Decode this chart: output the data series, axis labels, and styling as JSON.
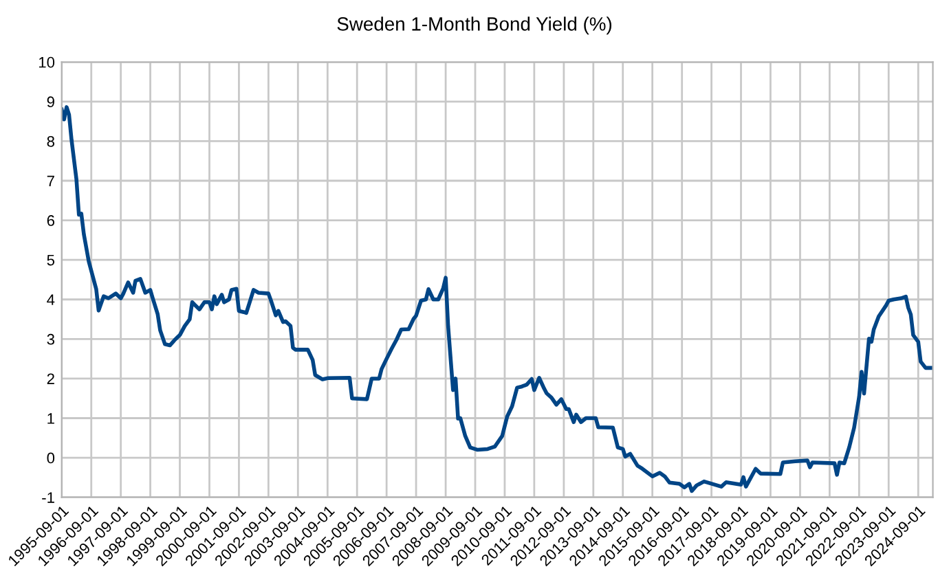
{
  "chart_data": {
    "type": "line",
    "title": "Sweden 1-Month Bond Yield (%)",
    "x": [
      "1995-09",
      "1995-10",
      "1995-11",
      "1995-12",
      "1996-01",
      "1996-03",
      "1996-04",
      "1996-05",
      "1996-06",
      "1996-08",
      "1996-11",
      "1996-12",
      "1997-02",
      "1997-04",
      "1997-07",
      "1997-09",
      "1997-10",
      "1997-12",
      "1998-02",
      "1998-03",
      "1998-05",
      "1998-07",
      "1998-09",
      "1998-10",
      "1998-12",
      "1999-01",
      "1999-03",
      "1999-05",
      "1999-07",
      "1999-09",
      "1999-11",
      "2000-01",
      "2000-02",
      "2000-03",
      "2000-05",
      "2000-07",
      "2000-09",
      "2000-10",
      "2000-11",
      "2000-12",
      "2001-02",
      "2001-03",
      "2001-05",
      "2001-06",
      "2001-08",
      "2001-09",
      "2001-11",
      "2001-12",
      "2002-01",
      "2002-03",
      "2002-05",
      "2002-09",
      "2002-10",
      "2002-12",
      "2003-01",
      "2003-03",
      "2003-04",
      "2003-06",
      "2003-07",
      "2003-08",
      "2004-01",
      "2004-03",
      "2004-04",
      "2004-07",
      "2004-09",
      "2005-06",
      "2005-07",
      "2006-01",
      "2006-03",
      "2006-06",
      "2006-07",
      "2006-09",
      "2006-11",
      "2007-01",
      "2007-03",
      "2007-06",
      "2007-08",
      "2007-09",
      "2007-11",
      "2008-01",
      "2008-02",
      "2008-04",
      "2008-06",
      "2008-08",
      "2008-09",
      "2008-10",
      "2008-12",
      "2009-01",
      "2009-02",
      "2009-03",
      "2009-05",
      "2009-07",
      "2009-10",
      "2010-02",
      "2010-05",
      "2010-08",
      "2010-10",
      "2010-12",
      "2011-02",
      "2011-04",
      "2011-06",
      "2011-08",
      "2011-09",
      "2011-11",
      "2012-01",
      "2012-02",
      "2012-04",
      "2012-06",
      "2012-08",
      "2012-10",
      "2012-11",
      "2013-01",
      "2013-02",
      "2013-04",
      "2013-06",
      "2013-10",
      "2013-11",
      "2014-05",
      "2014-07",
      "2014-09",
      "2014-10",
      "2014-12",
      "2015-03",
      "2015-05",
      "2015-09",
      "2015-12",
      "2016-02",
      "2016-04",
      "2016-08",
      "2016-10",
      "2016-12",
      "2017-01",
      "2017-03",
      "2017-06",
      "2018-01",
      "2018-03",
      "2018-09",
      "2018-10",
      "2018-11",
      "2019-03",
      "2019-05",
      "2020-01",
      "2020-02",
      "2020-07",
      "2020-12",
      "2021-01",
      "2021-02",
      "2021-11",
      "2021-12",
      "2022-01",
      "2022-03",
      "2022-05",
      "2022-07",
      "2022-09",
      "2022-10",
      "2022-11",
      "2023-01",
      "2023-02",
      "2023-03",
      "2023-05",
      "2023-08",
      "2023-09",
      "2023-11",
      "2024-02",
      "2024-04",
      "2024-05",
      "2024-06",
      "2024-07",
      "2024-09",
      "2024-10",
      "2024-12",
      "2025-03"
    ],
    "series": [
      {
        "color": "#004586",
        "values": [
          8.8,
          8.55,
          8.86,
          8.67,
          8.03,
          7.04,
          6.14,
          6.17,
          5.65,
          4.96,
          4.26,
          3.72,
          4.08,
          4.03,
          4.15,
          4.03,
          4.14,
          4.43,
          4.17,
          4.47,
          4.52,
          4.17,
          4.24,
          4.03,
          3.63,
          3.22,
          2.87,
          2.84,
          2.98,
          3.1,
          3.33,
          3.5,
          3.93,
          3.87,
          3.75,
          3.93,
          3.93,
          3.75,
          4.08,
          3.88,
          4.12,
          3.93,
          4.0,
          4.24,
          4.27,
          3.71,
          3.68,
          3.66,
          3.86,
          4.24,
          4.17,
          4.15,
          3.98,
          3.6,
          3.71,
          3.43,
          3.45,
          3.33,
          2.78,
          2.73,
          2.73,
          2.47,
          2.09,
          1.98,
          2.01,
          2.02,
          1.5,
          1.48,
          2.0,
          2.0,
          2.24,
          2.5,
          2.75,
          2.98,
          3.24,
          3.25,
          3.51,
          3.59,
          3.97,
          4.0,
          4.26,
          4.0,
          4.0,
          4.28,
          4.55,
          3.33,
          1.71,
          2.0,
          0.99,
          1.0,
          0.55,
          0.26,
          0.2,
          0.22,
          0.28,
          0.55,
          1.04,
          1.3,
          1.77,
          1.8,
          1.85,
          1.99,
          1.71,
          2.02,
          1.75,
          1.63,
          1.52,
          1.34,
          1.48,
          1.23,
          1.23,
          0.9,
          1.09,
          0.9,
          1.0,
          1.0,
          0.77,
          0.76,
          0.26,
          0.22,
          0.03,
          0.1,
          -0.2,
          -0.28,
          -0.47,
          -0.38,
          -0.47,
          -0.63,
          -0.66,
          -0.75,
          -0.66,
          -0.84,
          -0.7,
          -0.6,
          -0.73,
          -0.62,
          -0.68,
          -0.49,
          -0.73,
          -0.28,
          -0.4,
          -0.41,
          -0.12,
          -0.09,
          -0.07,
          -0.24,
          -0.12,
          -0.14,
          -0.43,
          -0.12,
          -0.14,
          0.26,
          0.76,
          1.54,
          2.17,
          1.62,
          3.01,
          2.93,
          3.24,
          3.57,
          3.85,
          3.97,
          4.0,
          4.03,
          4.07,
          3.79,
          3.62,
          3.1,
          2.93,
          2.43,
          2.27,
          2.27
        ]
      }
    ],
    "xlim": [
      "1995-09",
      "2025-03"
    ],
    "xticks": [
      "1995-09-01",
      "1996-09-01",
      "1997-09-01",
      "1998-09-01",
      "1999-09-01",
      "2000-09-01",
      "2001-09-01",
      "2002-09-01",
      "2003-09-01",
      "2004-09-01",
      "2005-09-01",
      "2006-09-01",
      "2007-09-01",
      "2008-09-01",
      "2009-09-01",
      "2010-09-01",
      "2011-09-01",
      "2012-09-01",
      "2013-09-01",
      "2014-09-01",
      "2015-09-01",
      "2016-09-01",
      "2017-09-01",
      "2018-09-01",
      "2019-09-01",
      "2020-09-01",
      "2021-09-01",
      "2022-09-01",
      "2023-09-01",
      "2024-09-01"
    ],
    "ylim": [
      -1,
      10
    ],
    "yticks": [
      -1,
      0,
      1,
      2,
      3,
      4,
      5,
      6,
      7,
      8,
      9,
      10
    ],
    "grid": true,
    "line_style": "solid",
    "marker": "none"
  }
}
